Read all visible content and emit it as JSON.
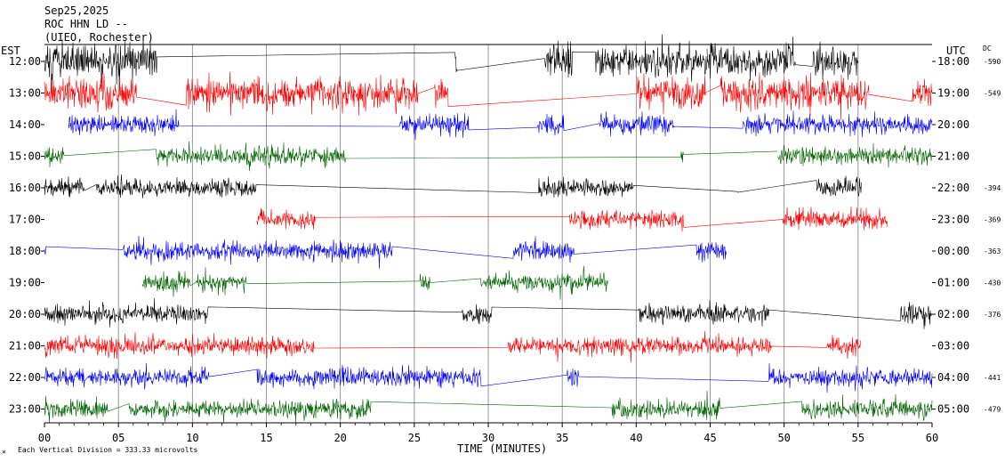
{
  "header": {
    "date": "Sep25,2025",
    "station": "ROC HHN LD --",
    "location": "(UIEO, Rochester)"
  },
  "labels": {
    "left_tz": "EST",
    "right_tz": "UTC",
    "dc_header": "DC",
    "xlabel": "TIME (MINUTES)",
    "footnote": "Each Vertical Division = 333.33 microvolts",
    "footnote_mark": "✕"
  },
  "chart_data": {
    "type": "line",
    "title": "",
    "xlabel": "TIME (MINUTES)",
    "xlim": [
      0,
      60
    ],
    "x_ticks": [
      "00",
      "05",
      "10",
      "15",
      "20",
      "25",
      "30",
      "35",
      "40",
      "45",
      "50",
      "55",
      "60"
    ],
    "gridlines": "vertical every 5 minutes",
    "rows": [
      {
        "est": "12:00",
        "utc": "18:00",
        "dc": "-590",
        "color": "#000000"
      },
      {
        "est": "13:00",
        "utc": "19:00",
        "dc": "-549",
        "color": "#ff0000"
      },
      {
        "est": "14:00",
        "utc": "20:00",
        "dc": "",
        "color": "#0000ff"
      },
      {
        "est": "15:00",
        "utc": "21:00",
        "dc": "",
        "color": "#006600"
      },
      {
        "est": "16:00",
        "utc": "22:00",
        "dc": "-394",
        "color": "#000000"
      },
      {
        "est": "17:00",
        "utc": "23:00",
        "dc": "-369",
        "color": "#ff0000"
      },
      {
        "est": "18:00",
        "utc": "00:00",
        "dc": "-363",
        "color": "#0000ff"
      },
      {
        "est": "19:00",
        "utc": "01:00",
        "dc": "-430",
        "color": "#006600"
      },
      {
        "est": "20:00",
        "utc": "02:00",
        "dc": "-376",
        "color": "#000000"
      },
      {
        "est": "21:00",
        "utc": "03:00",
        "dc": "",
        "color": "#ff0000"
      },
      {
        "est": "22:00",
        "utc": "04:00",
        "dc": "-441",
        "color": "#0000ff"
      },
      {
        "est": "23:00",
        "utc": "05:00",
        "dc": "-479",
        "color": "#006600"
      }
    ]
  }
}
